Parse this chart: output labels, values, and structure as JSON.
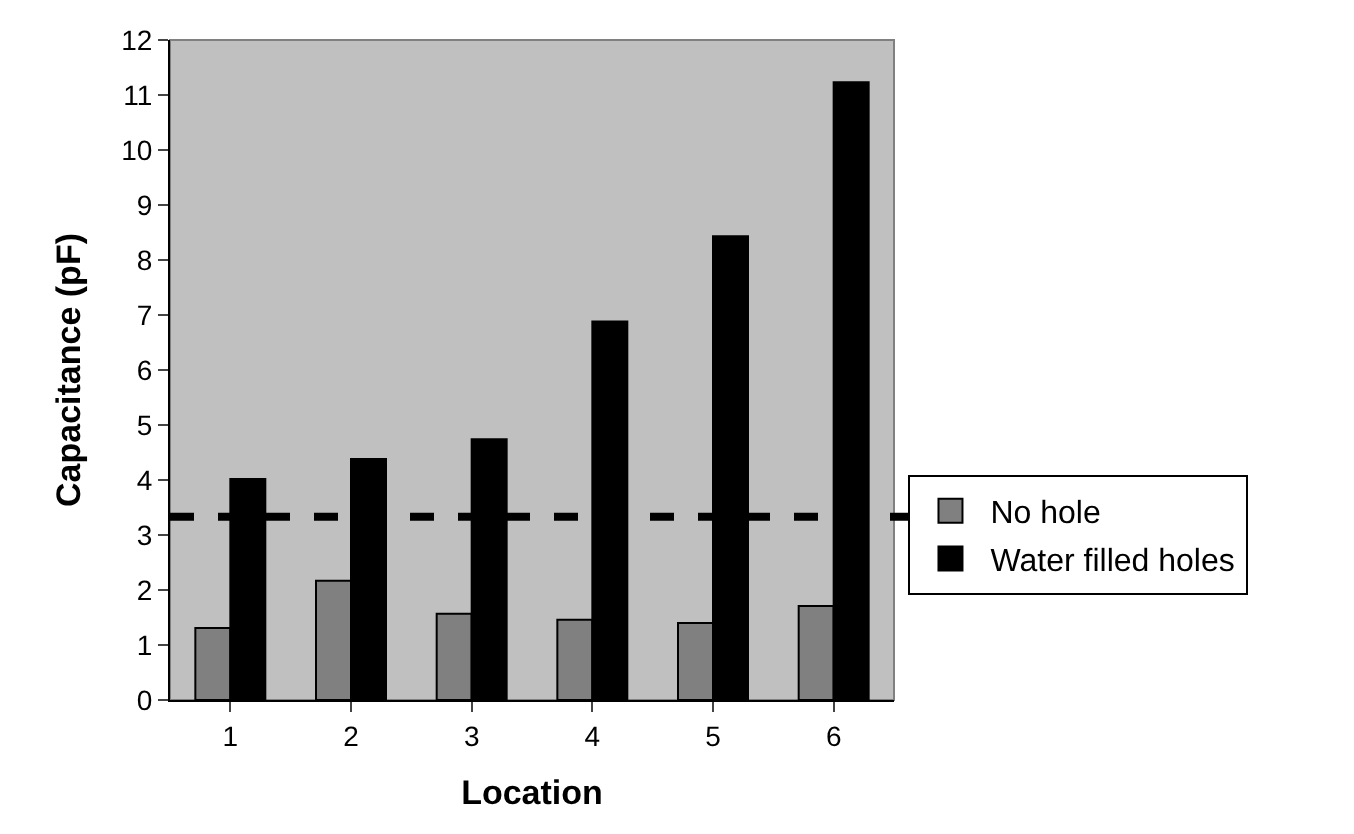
{
  "chart_data": {
    "type": "bar",
    "xlabel": "Location",
    "ylabel": "Capacitance (pF)",
    "categories": [
      "1",
      "2",
      "3",
      "4",
      "5",
      "6"
    ],
    "series": [
      {
        "name": "No hole",
        "color": "#808080",
        "values": [
          1.31,
          2.17,
          1.57,
          1.46,
          1.4,
          1.71
        ]
      },
      {
        "name": "Water filled holes",
        "color": "#000000",
        "values": [
          4.02,
          4.38,
          4.74,
          6.88,
          8.43,
          11.23
        ]
      }
    ],
    "ylim": [
      0,
      12
    ],
    "yticks": [
      0,
      1,
      2,
      3,
      4,
      5,
      6,
      7,
      8,
      9,
      10,
      11,
      12
    ],
    "ref_lines": [
      {
        "axis": "y",
        "value": 3.33,
        "color": "#000000",
        "line_style": "dashed"
      }
    ],
    "grid": false,
    "legend": "right"
  }
}
